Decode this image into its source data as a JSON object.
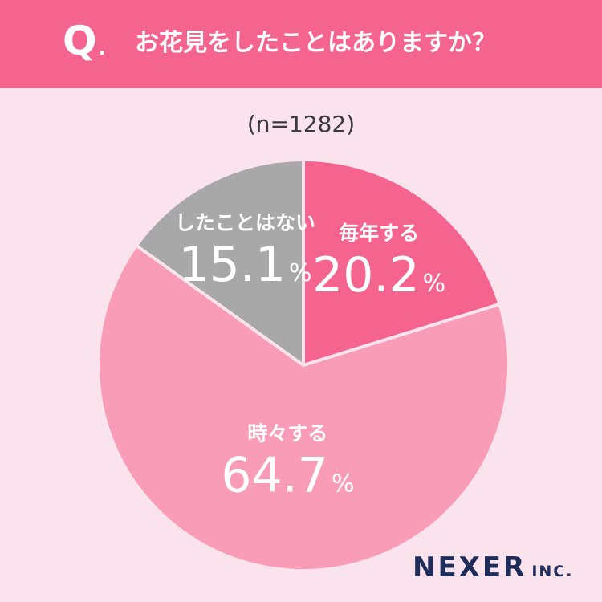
{
  "header": {
    "q_mark": "Q",
    "q_dot": ".",
    "question": "お花見をしたことはありますか？"
  },
  "sample_size": "(n=1282)",
  "chart_data": {
    "type": "pie",
    "title": "お花見をしたことはありますか？",
    "n": "(n=1282)",
    "slices": [
      {
        "label": "毎年する",
        "value": 20.2,
        "value_text": "20.2",
        "color": "#f5648f",
        "text_color": "#ffffff"
      },
      {
        "label": "時々する",
        "value": 64.7,
        "value_text": "64.7",
        "color": "#f89cb8",
        "text_color": "#ffffff"
      },
      {
        "label": "したことはない",
        "value": 15.1,
        "value_text": "15.1",
        "color": "#a8a8a8",
        "text_color": "#ffffff"
      }
    ],
    "unit": "%",
    "start": "12 o'clock",
    "direction": "clockwise",
    "separator_color": "#fbe3ee"
  },
  "logo": {
    "name": "NEXER",
    "suffix": "INC."
  }
}
